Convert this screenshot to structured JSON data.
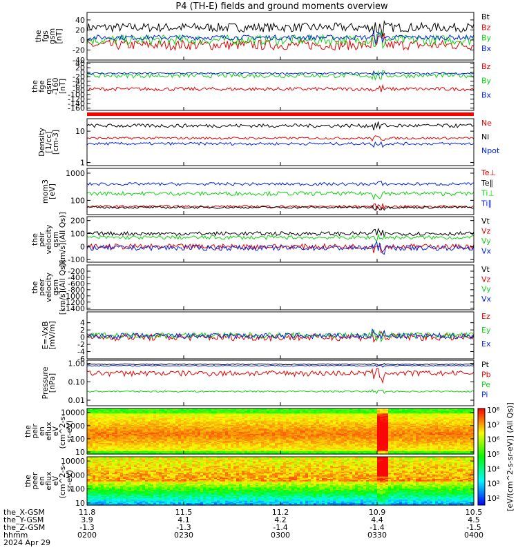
{
  "title": "P4 (TH-E) fields and ground moments overview",
  "colors": {
    "black": "#000000",
    "red": "#e00000",
    "green": "#10d010",
    "blue": "#0020e0"
  },
  "chart_data": [
    {
      "type": "line",
      "id": "fgs",
      "ylabel": [
        "the",
        "fgs",
        "gsm",
        "[nT]"
      ],
      "ylim": [
        -40,
        55
      ],
      "ticks": [
        "40",
        "20",
        "0",
        "-20",
        "-40"
      ],
      "tickvals": [
        40,
        20,
        0,
        -20,
        -40
      ],
      "series": [
        {
          "name": "Bt",
          "color": "#000000",
          "base": 25,
          "amp": 9
        },
        {
          "name": "Bz",
          "color": "#e00000",
          "base": -10,
          "amp": 10
        },
        {
          "name": "By",
          "color": "#10d010",
          "base": 0,
          "amp": 10
        },
        {
          "name": "Bx",
          "color": "#0020e0",
          "base": 5,
          "amp": 5
        }
      ]
    },
    {
      "type": "line",
      "id": "fge",
      "ylabel": [
        "the",
        "fge",
        "gsm",
        "-160",
        "[nT]"
      ],
      "ylim": [
        -170,
        45
      ],
      "ticks": [
        "40",
        "20",
        "0",
        "-20",
        "-40",
        "-60",
        "-80",
        "-100",
        "-120",
        "-140",
        "-160"
      ],
      "tickvals": [
        40,
        20,
        0,
        -20,
        -40,
        -60,
        -80,
        -100,
        -120,
        -140,
        -160
      ],
      "series": [
        {
          "name": "Bz",
          "color": "#e00000",
          "base": -75,
          "amp": 8
        },
        {
          "name": "By",
          "color": "#10d010",
          "base": -15,
          "amp": 10
        },
        {
          "name": "Bx",
          "color": "#0020e0",
          "base": -5,
          "amp": 4
        }
      ]
    },
    {
      "type": "line",
      "id": "density",
      "ylabel": [
        "Density",
        "[1/cc]",
        "[cm-3]"
      ],
      "log": true,
      "ylim": [
        0.8,
        25
      ],
      "ticks": [
        "10",
        "1"
      ],
      "tickvals": [
        10,
        1
      ],
      "series": [
        {
          "name": "Ne",
          "color": "#e00000",
          "base": 6,
          "amp": 0.5
        },
        {
          "name": "Ni",
          "color": "#000000",
          "base": 15,
          "amp": 2
        },
        {
          "name": "Npot",
          "color": "#0020e0",
          "base": 4,
          "amp": 0.4
        }
      ]
    },
    {
      "type": "line",
      "id": "temp",
      "ylabel": [
        "mom3",
        "[eV]"
      ],
      "log": true,
      "ylim": [
        30,
        1500
      ],
      "ticks": [
        "1000",
        "100"
      ],
      "tickvals": [
        1000,
        100
      ],
      "series": [
        {
          "name": "Te⊥",
          "color": "#e00000",
          "base": 60,
          "amp": 6
        },
        {
          "name": "Te∥",
          "color": "#000000",
          "base": 55,
          "amp": 5
        },
        {
          "name": "Ti⊥",
          "color": "#10d010",
          "base": 180,
          "amp": 30
        },
        {
          "name": "Ti∥",
          "color": "#0020e0",
          "base": 400,
          "amp": 50
        }
      ]
    },
    {
      "type": "line",
      "id": "peir",
      "ylabel": [
        "the",
        "peir",
        "velocity",
        "gsm",
        "[km/s](All Qs)]"
      ],
      "ylim": [
        -120,
        230
      ],
      "ticks": [
        "200",
        "100",
        "0",
        "-100"
      ],
      "tickvals": [
        200,
        100,
        0,
        -100
      ],
      "series": [
        {
          "name": "Vt",
          "color": "#000000",
          "base": 100,
          "amp": 15
        },
        {
          "name": "Vz",
          "color": "#e00000",
          "base": 0,
          "amp": 20
        },
        {
          "name": "Vy",
          "color": "#10d010",
          "base": 70,
          "amp": 15
        },
        {
          "name": "Vx",
          "color": "#0020e0",
          "base": -10,
          "amp": 20
        }
      ]
    },
    {
      "type": "line",
      "id": "peer",
      "ylabel": [
        "the",
        "peer",
        "velocity",
        "gsm",
        "[km/s](All Qs)]"
      ],
      "ylim": [
        -1450,
        0
      ],
      "ticks": [
        "-200",
        "-400",
        "-600",
        "-800",
        "-1000",
        "-1200",
        "-1400"
      ],
      "tickvals": [
        -200,
        -400,
        -600,
        -800,
        -1000,
        -1200,
        -1400
      ],
      "series": [
        {
          "name": "Vt",
          "color": "#000000"
        },
        {
          "name": "Vz",
          "color": "#e00000"
        },
        {
          "name": "Vy",
          "color": "#10d010"
        },
        {
          "name": "Vx",
          "color": "#0020e0"
        }
      ]
    },
    {
      "type": "line",
      "id": "efield",
      "ylabel": [
        "E=-VxB",
        "[mV/m]"
      ],
      "ylim": [
        -6,
        7
      ],
      "ticks": [
        "4",
        "2",
        "0",
        "-2",
        "-4",
        "-6"
      ],
      "tickvals": [
        4,
        2,
        0,
        -2,
        -4,
        -6
      ],
      "series": [
        {
          "name": "Ez",
          "color": "#e00000",
          "base": 0,
          "amp": 1
        },
        {
          "name": "Ey",
          "color": "#10d010",
          "base": 0.5,
          "amp": 0.8
        },
        {
          "name": "Ex",
          "color": "#0020e0",
          "base": 0.3,
          "amp": 0.8
        }
      ]
    },
    {
      "type": "line",
      "id": "pressure",
      "ylabel": [
        "Pressure",
        "[nPa]"
      ],
      "log": true,
      "ylim": [
        0.005,
        1.5
      ],
      "ticks": [
        "1.00",
        "0.10",
        "0.01"
      ],
      "tickvals": [
        1,
        0.1,
        0.01
      ],
      "series": [
        {
          "name": "Pt",
          "color": "#000000",
          "base": 0.9,
          "amp": 0.05
        },
        {
          "name": "Pb",
          "color": "#e00000",
          "base": 0.3,
          "amp": 0.1
        },
        {
          "name": "Pe",
          "color": "#10d010",
          "base": 0.03,
          "amp": 0.003
        },
        {
          "name": "Pi",
          "color": "#0020e0",
          "base": 0.75,
          "amp": 0.05
        }
      ]
    },
    {
      "type": "heatmap",
      "id": "peir_spec",
      "ylabel": [
        "the",
        "peir",
        "en",
        "eflux",
        "eV",
        "(cm^2-s-",
        "sr-eV)"
      ],
      "log": true,
      "ylim": [
        7,
        20000
      ],
      "ticks": [
        "10000",
        "1000",
        "100",
        "10"
      ],
      "tickvals": [
        10000,
        1000,
        100,
        10
      ]
    },
    {
      "type": "heatmap",
      "id": "peer_spec",
      "ylabel": [
        "the",
        "peer",
        "en",
        "eflux",
        "eV",
        "(cm^2-s-",
        "sr-eV)"
      ],
      "log": true,
      "ylim": [
        7,
        20000
      ],
      "ticks": [
        "10000",
        "1000",
        "100",
        "10"
      ],
      "tickvals": [
        10000,
        1000,
        100,
        10
      ]
    }
  ],
  "colorbar": {
    "ticks": [
      "10⁸",
      "10⁷",
      "10⁶",
      "10⁵",
      "10⁴",
      "10³",
      "10²"
    ],
    "label": "[eV/(cm^2-s-sr-eV)]  (All Qs)]"
  },
  "xaxis": {
    "rows": [
      {
        "label": "the_X-GSM",
        "values": [
          "11.8",
          "11.5",
          "11.2",
          "10.9",
          "10.5"
        ]
      },
      {
        "label": "the_Y-GSM",
        "values": [
          "3.9",
          "4.1",
          "4.2",
          "4.4",
          "4.5"
        ]
      },
      {
        "label": "the_Z-GSM",
        "values": [
          "-1.3",
          "-1.3",
          "-1.4",
          "-1.4",
          "-1.5"
        ]
      },
      {
        "label": "hhmm",
        "values": [
          "0200",
          "0230",
          "0300",
          "0330",
          "0400"
        ]
      }
    ],
    "date": "2024 Apr 29"
  }
}
